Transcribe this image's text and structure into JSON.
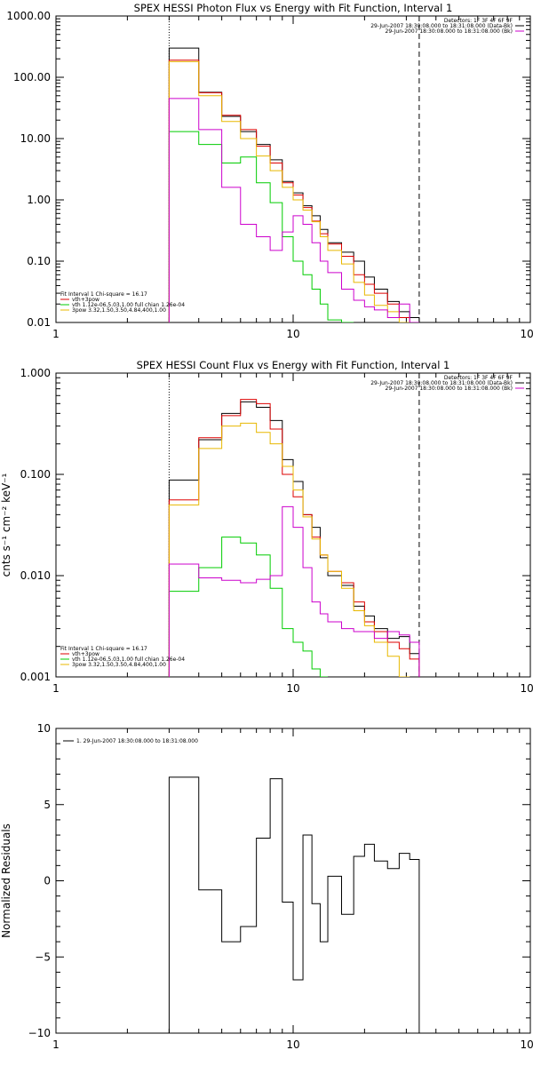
{
  "chart_data": [
    {
      "type": "line",
      "title": "SPEX HESSI Photon Flux vs Energy with Fit Function, Interval 1",
      "x_scale": "log",
      "y_scale": "log",
      "xlim": [
        1,
        100
      ],
      "ylim": [
        0.01,
        1000
      ],
      "x_tick_labels": [
        "1",
        "10",
        "100"
      ],
      "y_tick_labels": [
        "1000.00",
        "100.00",
        "10.00",
        "1.00",
        "0.10",
        "0.01"
      ],
      "x_tick_values": [
        1,
        10,
        100
      ],
      "y_tick_values": [
        1000,
        100,
        10,
        1,
        0.1,
        0.01
      ],
      "vlines": [
        {
          "x": 3,
          "style": "dotted"
        },
        {
          "x": 34,
          "style": "dashed"
        }
      ],
      "header_text": [
        "Detectors: 1F 3F 4F 6F 9F",
        "29-Jun-2007 18:30:08.000 to 18:31:08.000 (Data-Bk)",
        "29-Jun-2007 18:30:08.000 to 18:31:08.000 (Bk)"
      ],
      "header_colors": [
        "#000000",
        "#000000",
        "#cc00cc"
      ],
      "legend_text": [
        "Fit Interval 1    Chi-square = 16.17",
        "vth+3pow",
        "vth 1.12e-06,5.03,1.00   full chian 1.26e-04",
        "3pow 3.32,1.50,3.50,4.84,400,1.00"
      ],
      "legend_colors": [
        "#000000",
        "#dd0000",
        "#00cc00",
        "#e8b800"
      ],
      "bin_edges": [
        3,
        4,
        5,
        6,
        7,
        8,
        9,
        10,
        11,
        12,
        13,
        14,
        16,
        18,
        20,
        22,
        25,
        28,
        31,
        34
      ],
      "series": [
        {
          "color": "#000000",
          "values": [
            300,
            57,
            23,
            13,
            8,
            4.5,
            2,
            1.3,
            0.8,
            0.55,
            0.33,
            0.2,
            0.14,
            0.1,
            0.055,
            0.035,
            0.022,
            0.015,
            0.012
          ]
        },
        {
          "color": "#dd0000",
          "values": [
            190,
            56,
            24,
            14,
            7.5,
            4,
            1.9,
            1.2,
            0.75,
            0.45,
            0.28,
            0.19,
            0.12,
            0.06,
            0.042,
            0.03,
            0.02,
            0.012,
            0.009
          ]
        },
        {
          "color": "#00cc00",
          "values": [
            13,
            8,
            4,
            5,
            1.9,
            0.9,
            0.25,
            0.1,
            0.06,
            0.035,
            0.02,
            0.011,
            0.007
          ]
        },
        {
          "color": "#e8b800",
          "values": [
            180,
            50,
            19,
            10,
            5.2,
            3,
            1.6,
            1,
            0.68,
            0.44,
            0.25,
            0.15,
            0.09,
            0.045,
            0.028,
            0.019,
            0.015,
            0.01,
            0.006
          ]
        },
        {
          "color": "#cc00cc",
          "values": [
            45,
            14,
            1.6,
            0.4,
            0.25,
            0.15,
            0.3,
            0.55,
            0.4,
            0.2,
            0.1,
            0.065,
            0.035,
            0.023,
            0.018,
            0.016,
            0.012,
            0.02,
            0.008
          ]
        }
      ]
    },
    {
      "type": "line",
      "title": "SPEX HESSI Count Flux vs Energy with Fit Function, Interval 1",
      "x_scale": "log",
      "y_scale": "log",
      "xlim": [
        1,
        100
      ],
      "ylim": [
        0.001,
        1
      ],
      "x_tick_labels": [
        "1",
        "10",
        "100"
      ],
      "y_tick_labels": [
        "1.000",
        "0.100",
        "0.010",
        "0.001"
      ],
      "x_tick_values": [
        1,
        10,
        100
      ],
      "y_tick_values": [
        1,
        0.1,
        0.01,
        0.001
      ],
      "ylabel": "cnts s⁻¹ cm⁻² keV⁻¹",
      "vlines": [
        {
          "x": 3,
          "style": "dotted"
        },
        {
          "x": 34,
          "style": "dashed"
        }
      ],
      "header_text": [
        "Detectors: 1F 3F 4F 6F 9F",
        "29-Jun-2007 18:30:08.000 to 18:31:08.000 (Data-Bk)",
        "29-Jun-2007 18:30:08.000 to 18:31:08.000 (Bk)"
      ],
      "header_colors": [
        "#000000",
        "#000000",
        "#cc00cc"
      ],
      "legend_text": [
        "Fit Interval 1    Chi-square = 16.17",
        "vth+3pow",
        "vth 1.12e-06,5.03,1.00   full chian 1.26e-04",
        "3pow 3.32,1.50,3.50,4.84,400,1.00"
      ],
      "legend_colors": [
        "#000000",
        "#dd0000",
        "#00cc00",
        "#e8b800"
      ],
      "bin_edges": [
        3,
        4,
        5,
        6,
        7,
        8,
        9,
        10,
        11,
        12,
        13,
        14,
        16,
        18,
        20,
        22,
        25,
        28,
        31,
        34
      ],
      "series": [
        {
          "color": "#000000",
          "values": [
            0.088,
            0.22,
            0.4,
            0.52,
            0.46,
            0.34,
            0.14,
            0.085,
            0.04,
            0.03,
            0.015,
            0.01,
            0.008,
            0.005,
            0.004,
            0.003,
            0.0024,
            0.0025,
            0.0017
          ]
        },
        {
          "color": "#dd0000",
          "values": [
            0.056,
            0.23,
            0.38,
            0.55,
            0.5,
            0.28,
            0.1,
            0.06,
            0.04,
            0.024,
            0.016,
            0.011,
            0.0085,
            0.0055,
            0.0035,
            0.0028,
            0.0022,
            0.0019,
            0.0015
          ]
        },
        {
          "color": "#00cc00",
          "values": [
            0.007,
            0.012,
            0.024,
            0.021,
            0.016,
            0.0075,
            0.003,
            0.0022,
            0.0018,
            0.0012,
            0.001
          ]
        },
        {
          "color": "#e8b800",
          "values": [
            0.05,
            0.18,
            0.3,
            0.32,
            0.26,
            0.2,
            0.12,
            0.07,
            0.038,
            0.023,
            0.016,
            0.011,
            0.0075,
            0.0045,
            0.0032,
            0.0022,
            0.0016,
            0.001
          ]
        },
        {
          "color": "#cc00cc",
          "values": [
            0.013,
            0.0095,
            0.009,
            0.0085,
            0.0092,
            0.01,
            0.048,
            0.03,
            0.012,
            0.0055,
            0.0042,
            0.0035,
            0.003,
            0.0028,
            0.0028,
            0.0024,
            0.0028,
            0.0026,
            0.0022
          ]
        }
      ]
    },
    {
      "type": "line",
      "x_scale": "log",
      "y_scale": "linear",
      "xlim": [
        1,
        100
      ],
      "ylim": [
        -10,
        10
      ],
      "x_tick_labels": [
        "1",
        "10",
        "100"
      ],
      "y_tick_labels": [
        "10",
        "5",
        "0",
        "−5",
        "−10"
      ],
      "x_tick_values": [
        1,
        10,
        100
      ],
      "y_tick_values": [
        10,
        5,
        0,
        -5,
        -10
      ],
      "ylabel": "Normalized Residuals",
      "legend_text": [
        "1. 29-Jun-2007 18:30:08.000 to 18:31:08.000"
      ],
      "bin_edges": [
        3,
        4,
        5,
        6,
        7,
        8,
        9,
        10,
        11,
        12,
        13,
        14,
        16,
        18,
        20,
        22,
        25,
        28,
        31,
        34
      ],
      "series": [
        {
          "color": "#000000",
          "values": [
            6.8,
            -0.6,
            -4,
            -3,
            2.8,
            6.7,
            -1.4,
            -6.5,
            3,
            -1.5,
            -4,
            0.3,
            -2.2,
            1.6,
            2.4,
            1.3,
            0.8,
            1.8,
            1.4
          ]
        }
      ]
    }
  ]
}
